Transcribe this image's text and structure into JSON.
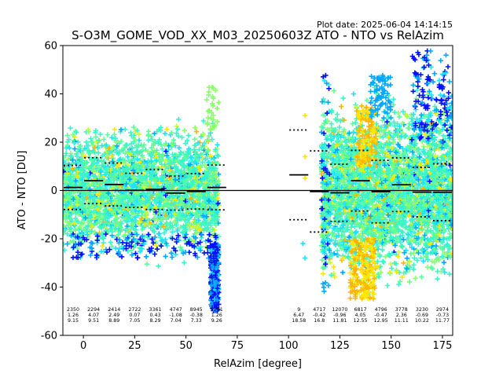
{
  "plot_date": "Plot date: 2025-06-04 14:14:15",
  "colors": {
    "scatter": [
      "#0010ff",
      "#00a8ff",
      "#1ee0ff",
      "#3cf4c8",
      "#5cff9a",
      "#8cff6c",
      "#c8ff38",
      "#ffe600",
      "#ffb400"
    ],
    "zero_line": "#000000",
    "mean_marker": "#000000"
  },
  "chart_data": {
    "type": "scatter",
    "title": "S-O3M_GOME_VOD_XX_M03_20250603Z ATO - NTO vs RelAzim",
    "xlabel": "RelAzim [degree]",
    "ylabel": "ATO - NTO [DU]",
    "xlim": [
      -10,
      180
    ],
    "ylim": [
      -60,
      60
    ],
    "xticks": [
      0,
      25,
      50,
      75,
      100,
      125,
      150,
      175
    ],
    "yticks": [
      -60,
      -40,
      -20,
      0,
      20,
      40,
      60
    ],
    "zero_line": 0,
    "bins": [
      {
        "center": -5,
        "count": "2350",
        "mean": "1.26",
        "std": "9.15",
        "mean_val": 1.26,
        "std_val": 9.15,
        "lo": -10,
        "hi": 0
      },
      {
        "center": 5,
        "count": "2294",
        "mean": "4.07",
        "std": "9.51",
        "mean_val": 4.07,
        "std_val": 9.51,
        "lo": 0,
        "hi": 10
      },
      {
        "center": 15,
        "count": "2414",
        "mean": "2.49",
        "std": "8.89",
        "mean_val": 2.49,
        "std_val": 8.89,
        "lo": 10,
        "hi": 20
      },
      {
        "center": 25,
        "count": "2722",
        "mean": "0.07",
        "std": "7.05",
        "mean_val": 0.07,
        "std_val": 7.05,
        "lo": 20,
        "hi": 30
      },
      {
        "center": 35,
        "count": "3361",
        "mean": "0.43",
        "std": "8.29",
        "mean_val": 0.43,
        "std_val": 8.29,
        "lo": 30,
        "hi": 40
      },
      {
        "center": 45,
        "count": "4747",
        "mean": "-1.08",
        "std": "7.04",
        "mean_val": -1.08,
        "std_val": 7.04,
        "lo": 40,
        "hi": 50
      },
      {
        "center": 55,
        "count": "8945",
        "mean": "-0.38",
        "std": "7.33",
        "mean_val": -0.38,
        "std_val": 7.33,
        "lo": 50,
        "hi": 60
      },
      {
        "center": 65,
        "count": "5291",
        "mean": "1.26",
        "std": "9.26",
        "mean_val": 1.26,
        "std_val": 9.26,
        "lo": 60,
        "hi": 70
      },
      {
        "center": 105,
        "count": "9",
        "mean": "6.47",
        "std": "18.58",
        "mean_val": 6.47,
        "std_val": 18.58,
        "lo": 100,
        "hi": 110
      },
      {
        "center": 115,
        "count": "4717",
        "mean": "-0.42",
        "std": "16.8",
        "mean_val": -0.42,
        "std_val": 16.8,
        "lo": 110,
        "hi": 120
      },
      {
        "center": 125,
        "count": "12070",
        "mean": "-0.96",
        "std": "11.81",
        "mean_val": -0.96,
        "std_val": 11.81,
        "lo": 120,
        "hi": 130
      },
      {
        "center": 135,
        "count": "6817",
        "mean": "4.05",
        "std": "12.55",
        "mean_val": 4.05,
        "std_val": 12.55,
        "lo": 130,
        "hi": 140
      },
      {
        "center": 145,
        "count": "4796",
        "mean": "-0.47",
        "std": "12.95",
        "mean_val": -0.47,
        "std_val": 12.95,
        "lo": 140,
        "hi": 150
      },
      {
        "center": 155,
        "count": "3778",
        "mean": "2.36",
        "std": "11.11",
        "mean_val": 2.36,
        "std_val": 11.11,
        "lo": 150,
        "hi": 160
      },
      {
        "center": 165,
        "count": "3230",
        "mean": "-0.69",
        "std": "10.22",
        "mean_val": -0.69,
        "std_val": 10.22,
        "lo": 160,
        "hi": 170
      },
      {
        "center": 175,
        "count": "2974",
        "mean": "-0.73",
        "std": "11.77",
        "mean_val": -0.73,
        "std_val": 11.77,
        "lo": 170,
        "hi": 180
      }
    ],
    "scatter_clusters": [
      {
        "x_range": [
          -10,
          66
        ],
        "y_range": [
          -30,
          28
        ],
        "palette": "cool-green-yellow"
      },
      {
        "x_range": [
          62,
          66
        ],
        "y_range": [
          -50,
          -25
        ],
        "palette": "blue-cyan"
      },
      {
        "x_range": [
          116,
          180
        ],
        "y_range": [
          -48,
          58
        ],
        "palette": "cool-green-yellow"
      }
    ]
  }
}
